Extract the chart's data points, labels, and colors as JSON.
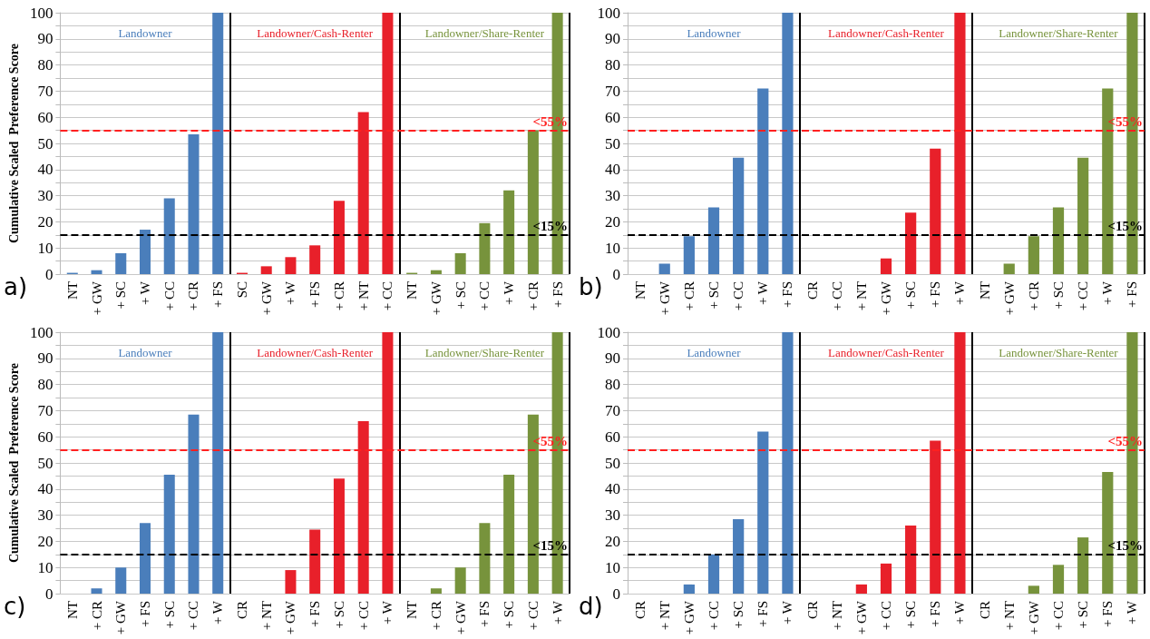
{
  "chart_data": [
    {
      "type": "bar",
      "ylabel": "Cumulative Scaled  Preference Score",
      "annotations": [
        "a)"
      ],
      "categories": [
        "NT",
        "+ GW",
        "+ SC",
        "+ W",
        "+ CC",
        "+ CR",
        "+ FS",
        "SC",
        "+ GW",
        "+ W",
        "+ FS",
        "+ CR",
        "+ NT",
        "+ CC",
        "NT",
        "+ GW",
        "+ SC",
        "+ CC",
        "+ W",
        "+ CR",
        "+ FS"
      ],
      "series": [
        {
          "name": "Landowner",
          "color": "#4a7ebb",
          "values": [
            0.5,
            1.5,
            8,
            17,
            29,
            53.5,
            100,
            null,
            null,
            null,
            null,
            null,
            null,
            null,
            null,
            null,
            null,
            null,
            null,
            null,
            null
          ]
        },
        {
          "name": "Landowner/Cash-Renter",
          "color": "#e8202a",
          "values": [
            null,
            null,
            null,
            null,
            null,
            null,
            null,
            0.5,
            3,
            6.5,
            11,
            28,
            62,
            100,
            null,
            null,
            null,
            null,
            null,
            null,
            null
          ]
        },
        {
          "name": "Landowner/Share-Renter",
          "color": "#77933c",
          "values": [
            null,
            null,
            null,
            null,
            null,
            null,
            null,
            null,
            null,
            null,
            null,
            null,
            null,
            null,
            0.5,
            1.5,
            8,
            19.5,
            32,
            55,
            100
          ]
        }
      ],
      "ylim": [
        0,
        100
      ],
      "yticks": [
        0,
        {
          "value": 5,
          "label": null
        },
        10,
        {
          "value": 15,
          "label": null
        },
        20,
        {
          "value": 25,
          "label": null
        },
        30,
        {
          "value": 35,
          "label": null
        },
        40,
        {
          "value": 45,
          "label": null
        },
        50,
        {
          "value": 55,
          "label": null
        },
        60,
        {
          "value": 65,
          "label": null
        },
        70,
        {
          "value": 75,
          "label": null
        },
        80,
        {
          "value": 85,
          "label": null
        },
        90,
        {
          "value": 95,
          "label": null
        },
        100
      ],
      "grid": "y",
      "ref_lines": [
        {
          "axis": "y",
          "value": 55,
          "label": "<55%",
          "color": "#ff2020",
          "line_style": "dashed"
        },
        {
          "axis": "y",
          "value": 15,
          "label": "<15%",
          "color": "#000000",
          "line_style": "dashed"
        }
      ]
    },
    {
      "type": "bar",
      "annotations": [
        "b)"
      ],
      "categories": [
        "NT",
        "+ GW",
        "+ CR",
        "+ SC",
        "+ CC",
        "+ W",
        "+ FS",
        "CR",
        "+ CC",
        "+ NT",
        "+ GW",
        "+ SC",
        "+ FS",
        "+ W",
        "NT",
        "+ GW",
        "+ CR",
        "+ SC",
        "+ CC",
        "+ W",
        "+ FS"
      ],
      "series": [
        {
          "name": "Landowner",
          "color": "#4a7ebb",
          "values": [
            0,
            4,
            14.5,
            25.5,
            44.5,
            71,
            100,
            null,
            null,
            null,
            null,
            null,
            null,
            null,
            null,
            null,
            null,
            null,
            null,
            null,
            null
          ]
        },
        {
          "name": "Landowner/Cash-Renter",
          "color": "#e8202a",
          "values": [
            null,
            null,
            null,
            null,
            null,
            null,
            null,
            0,
            0,
            0,
            6,
            23.5,
            48,
            100,
            null,
            null,
            null,
            null,
            null,
            null,
            null
          ]
        },
        {
          "name": "Landowner/Share-Renter",
          "color": "#77933c",
          "values": [
            null,
            null,
            null,
            null,
            null,
            null,
            null,
            null,
            null,
            null,
            null,
            null,
            null,
            null,
            0,
            4,
            14.5,
            25.5,
            44.5,
            71,
            100
          ]
        }
      ],
      "ylim": [
        0,
        100
      ],
      "yticks": [
        0,
        {
          "value": 5,
          "label": null
        },
        10,
        {
          "value": 15,
          "label": null
        },
        20,
        {
          "value": 25,
          "label": null
        },
        30,
        {
          "value": 35,
          "label": null
        },
        40,
        {
          "value": 45,
          "label": null
        },
        50,
        {
          "value": 55,
          "label": null
        },
        60,
        {
          "value": 65,
          "label": null
        },
        70,
        {
          "value": 75,
          "label": null
        },
        80,
        {
          "value": 85,
          "label": null
        },
        90,
        {
          "value": 95,
          "label": null
        },
        100
      ],
      "grid": "y",
      "ref_lines": [
        {
          "axis": "y",
          "value": 55,
          "label": "<55%",
          "color": "#ff2020",
          "line_style": "dashed"
        },
        {
          "axis": "y",
          "value": 15,
          "label": "<15%",
          "color": "#000000",
          "line_style": "dashed"
        }
      ]
    },
    {
      "type": "bar",
      "ylabel": "Cumulative Scaled  Preference Score",
      "annotations": [
        "c)"
      ],
      "categories": [
        "NT",
        "+ CR",
        "+ GW",
        "+ FS",
        "+ SC",
        "+ CC",
        "+ W",
        "CR",
        "+ NT",
        "+ GW",
        "+ FS",
        "+ SC",
        "+ CC",
        "+ W",
        "NT",
        "+ CR",
        "+ GW",
        "+ FS",
        "+ SC",
        "+ CC",
        "+ W"
      ],
      "series": [
        {
          "name": "Landowner",
          "color": "#4a7ebb",
          "values": [
            0,
            2,
            10,
            27,
            45.5,
            68.5,
            100,
            null,
            null,
            null,
            null,
            null,
            null,
            null,
            null,
            null,
            null,
            null,
            null,
            null,
            null
          ]
        },
        {
          "name": "Landowner/Cash-Renter",
          "color": "#e8202a",
          "values": [
            null,
            null,
            null,
            null,
            null,
            null,
            null,
            0,
            0,
            9,
            24.5,
            44,
            66,
            100,
            null,
            null,
            null,
            null,
            null,
            null,
            null
          ]
        },
        {
          "name": "Landowner/Share-Renter",
          "color": "#77933c",
          "values": [
            null,
            null,
            null,
            null,
            null,
            null,
            null,
            null,
            null,
            null,
            null,
            null,
            null,
            null,
            0,
            2,
            10,
            27,
            45.5,
            68.5,
            100
          ]
        }
      ],
      "ylim": [
        0,
        100
      ],
      "yticks": [
        0,
        {
          "value": 5,
          "label": null
        },
        10,
        {
          "value": 15,
          "label": null
        },
        20,
        {
          "value": 25,
          "label": null
        },
        30,
        {
          "value": 35,
          "label": null
        },
        40,
        {
          "value": 45,
          "label": null
        },
        50,
        {
          "value": 55,
          "label": null
        },
        60,
        {
          "value": 65,
          "label": null
        },
        70,
        {
          "value": 75,
          "label": null
        },
        80,
        {
          "value": 85,
          "label": null
        },
        90,
        {
          "value": 95,
          "label": null
        },
        100
      ],
      "grid": "y",
      "ref_lines": [
        {
          "axis": "y",
          "value": 55,
          "label": "<55%",
          "color": "#ff2020",
          "line_style": "dashed"
        },
        {
          "axis": "y",
          "value": 15,
          "label": "<15%",
          "color": "#000000",
          "line_style": "dashed"
        }
      ]
    },
    {
      "type": "bar",
      "annotations": [
        "d)"
      ],
      "categories": [
        "CR",
        "+ NT",
        "+ GW",
        "+ CC",
        "+ SC",
        "+ FS",
        "+ W",
        "CR",
        "+ NT",
        "+ GW",
        "+ CC",
        "+ SC",
        "+ FS",
        "+ W",
        "CR",
        "+ NT",
        "+ GW",
        "+ CC",
        "+ SC",
        "+ FS",
        "+ W"
      ],
      "series": [
        {
          "name": "Landowner",
          "color": "#4a7ebb",
          "values": [
            0,
            0,
            3.5,
            15,
            28.5,
            62,
            100,
            null,
            null,
            null,
            null,
            null,
            null,
            null,
            null,
            null,
            null,
            null,
            null,
            null,
            null
          ]
        },
        {
          "name": "Landowner/Cash-Renter",
          "color": "#e8202a",
          "values": [
            null,
            null,
            null,
            null,
            null,
            null,
            null,
            0,
            0,
            3.5,
            11.5,
            26,
            58.5,
            100,
            null,
            null,
            null,
            null,
            null,
            null,
            null
          ]
        },
        {
          "name": "Landowner/Share-Renter",
          "color": "#77933c",
          "values": [
            null,
            null,
            null,
            null,
            null,
            null,
            null,
            null,
            null,
            null,
            null,
            null,
            null,
            null,
            0,
            0,
            3,
            11,
            21.5,
            46.5,
            100
          ]
        }
      ],
      "ylim": [
        0,
        100
      ],
      "yticks": [
        0,
        {
          "value": 5,
          "label": null
        },
        10,
        {
          "value": 15,
          "label": null
        },
        20,
        {
          "value": 25,
          "label": null
        },
        30,
        {
          "value": 35,
          "label": null
        },
        40,
        {
          "value": 45,
          "label": null
        },
        50,
        {
          "value": 55,
          "label": null
        },
        60,
        {
          "value": 65,
          "label": null
        },
        70,
        {
          "value": 75,
          "label": null
        },
        80,
        {
          "value": 85,
          "label": null
        },
        90,
        {
          "value": 95,
          "label": null
        },
        100
      ],
      "grid": "y",
      "ref_lines": [
        {
          "axis": "y",
          "value": 55,
          "label": "<55%",
          "color": "#ff2020",
          "line_style": "dashed"
        },
        {
          "axis": "y",
          "value": 15,
          "label": "<15%",
          "color": "#000000",
          "line_style": "dashed"
        }
      ]
    }
  ]
}
